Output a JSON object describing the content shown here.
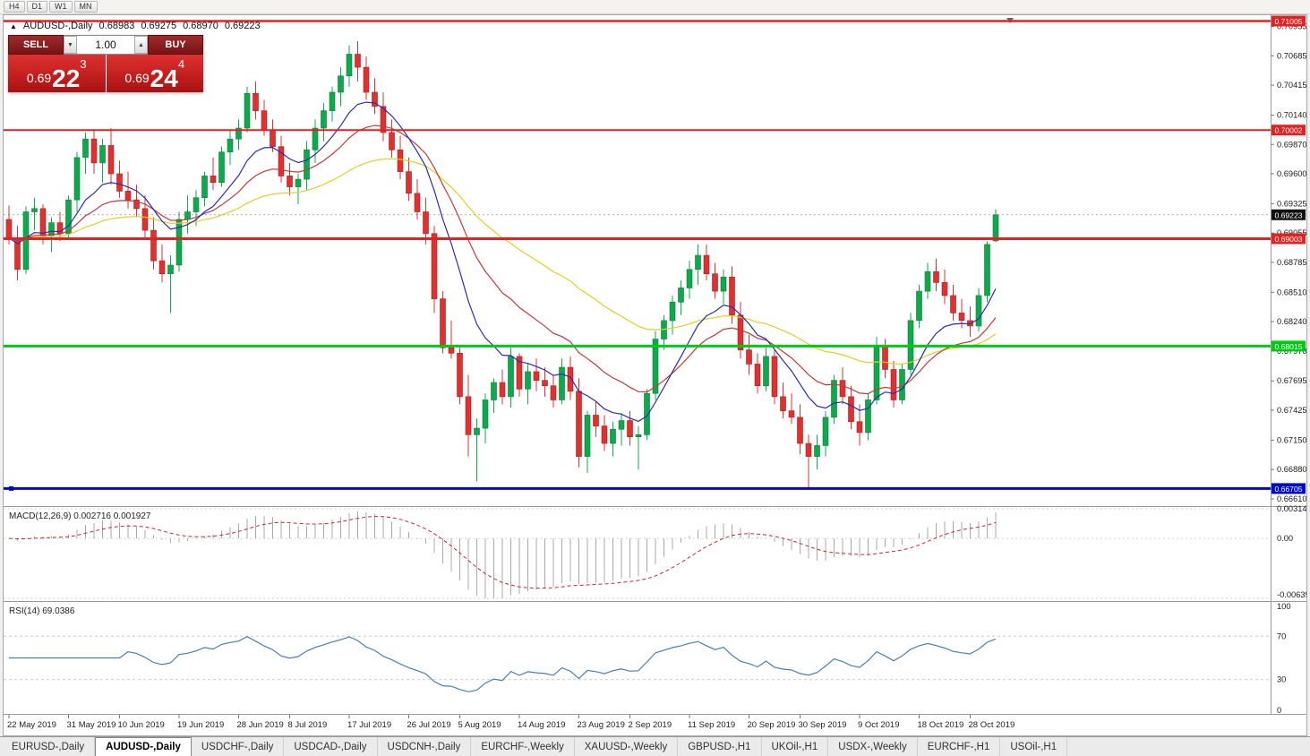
{
  "toolbar": {
    "timeframes": [
      "H4",
      "D1",
      "W1",
      "MN"
    ]
  },
  "chart": {
    "symbol_info": {
      "collapse_icon": "▲",
      "title": "AUDUSD-,Daily",
      "open": "0.68983",
      "high": "0.69275",
      "low": "0.68970",
      "close": "0.69223"
    },
    "trade_panel": {
      "sell_label": "SELL",
      "buy_label": "BUY",
      "volume": "1.00",
      "volume_down_icon": "▼",
      "volume_up_icon": "▲",
      "sell_price": {
        "prefix": "0.69",
        "big": "22",
        "sup": "3"
      },
      "buy_price": {
        "prefix": "0.69",
        "big": "24",
        "sup": "4"
      }
    },
    "price_axis": [
      "0.70955",
      "0.70685",
      "0.70415",
      "0.70140",
      "0.69870",
      "0.69600",
      "0.69325",
      "0.69055",
      "0.68785",
      "0.68510",
      "0.68240",
      "0.67970",
      "0.67695",
      "0.67425",
      "0.67150",
      "0.66880",
      "0.66610"
    ],
    "levels": [
      {
        "label": "0.71005",
        "price": 0.71005,
        "color": "#e12222",
        "width": 2.5
      },
      {
        "label": "0.70002",
        "price": 0.70002,
        "color": "#e12222",
        "width": 2
      },
      {
        "label": "0.69003",
        "price": 0.69003,
        "color": "#e12222",
        "width": 3
      },
      {
        "label": "0.68015",
        "price": 0.68015,
        "color": "#00ca12",
        "width": 3
      },
      {
        "label": "0.66705",
        "price": 0.66705,
        "color": "#0008d0",
        "width": 3
      }
    ],
    "bid": {
      "label": "0.69223",
      "price": 0.69223,
      "badge_color": "#101010"
    },
    "date_ticks": [
      {
        "label": "22 May 2019",
        "i": 0
      },
      {
        "label": "31 May 2019",
        "i": 7
      },
      {
        "label": "10 Jun 2019",
        "i": 13
      },
      {
        "label": "19 Jun 2019",
        "i": 20
      },
      {
        "label": "28 Jun 2019",
        "i": 27
      },
      {
        "label": "8 Jul 2019",
        "i": 33
      },
      {
        "label": "17 Jul 2019",
        "i": 40
      },
      {
        "label": "26 Jul 2019",
        "i": 47
      },
      {
        "label": "5 Aug 2019",
        "i": 53
      },
      {
        "label": "14 Aug 2019",
        "i": 60
      },
      {
        "label": "23 Aug 2019",
        "i": 67
      },
      {
        "label": "2 Sep 2019",
        "i": 73
      },
      {
        "label": "11 Sep 2019",
        "i": 80
      },
      {
        "label": "20 Sep 2019",
        "i": 87
      },
      {
        "label": "30 Sep 2019",
        "i": 93
      },
      {
        "label": "9 Oct 2019",
        "i": 100
      },
      {
        "label": "18 Oct 2019",
        "i": 107
      },
      {
        "label": "28 Oct 2019",
        "i": 113
      }
    ],
    "macd_label": "MACD(12,26,9)",
    "macd_value_main": "0.002716",
    "macd_value_signal": "0.001927",
    "macd_axis": [
      {
        "label": "0.003148",
        "v": 0.003148
      },
      {
        "label": "0.00",
        "v": 0
      },
      {
        "label": "-0.006353",
        "v": -0.006353
      }
    ],
    "rsi_label": "RSI(14) 69.0386",
    "rsi_axis": [
      {
        "label": "100",
        "v": 100
      },
      {
        "label": "70",
        "v": 70
      },
      {
        "label": "30",
        "v": 30
      },
      {
        "label": "0",
        "v": 0
      }
    ]
  },
  "tabs": [
    {
      "label": "EURUSD-,Daily",
      "active": false
    },
    {
      "label": "AUDUSD-,Daily",
      "active": true
    },
    {
      "label": "USDCHF-,Daily",
      "active": false
    },
    {
      "label": "USDCAD-,Daily",
      "active": false
    },
    {
      "label": "USDCNH-,Daily",
      "active": false
    },
    {
      "label": "EURCHF-,Weekly",
      "active": false
    },
    {
      "label": "XAUUSD-,Weekly",
      "active": false
    },
    {
      "label": "GBPUSD-,H1",
      "active": false
    },
    {
      "label": "UKOil-,H1",
      "active": false
    },
    {
      "label": "USDX-,Weekly",
      "active": false
    },
    {
      "label": "EURCHF-,H1",
      "active": false
    },
    {
      "label": "USOil-,H1",
      "active": false
    }
  ],
  "chart_data": {
    "type": "candlestick",
    "symbol": "AUDUSD",
    "timeframe": "Daily",
    "x_range": [
      "22 May 2019",
      "31 Oct 2019"
    ],
    "y_range": [
      0.6656,
      0.71042
    ],
    "last_ohlc": [
      0.68983,
      0.69275,
      0.6897,
      0.69223
    ],
    "horizontal_levels": [
      0.71005,
      0.70002,
      0.69003,
      0.68015,
      0.66705
    ],
    "candles": [
      [
        0.6918,
        0.6931,
        0.6895,
        0.6901
      ],
      [
        0.6901,
        0.6912,
        0.6862,
        0.6872
      ],
      [
        0.6872,
        0.693,
        0.6868,
        0.6925
      ],
      [
        0.6925,
        0.6938,
        0.6908,
        0.6928
      ],
      [
        0.6928,
        0.6932,
        0.6895,
        0.6903
      ],
      [
        0.6903,
        0.692,
        0.6888,
        0.6915
      ],
      [
        0.6915,
        0.6925,
        0.6898,
        0.6905
      ],
      [
        0.6905,
        0.694,
        0.69,
        0.6936
      ],
      [
        0.6936,
        0.698,
        0.6925,
        0.6975
      ],
      [
        0.6975,
        0.6998,
        0.696,
        0.6992
      ],
      [
        0.6992,
        0.7,
        0.696,
        0.697
      ],
      [
        0.697,
        0.6992,
        0.6952,
        0.6986
      ],
      [
        0.6986,
        0.7002,
        0.695,
        0.696
      ],
      [
        0.696,
        0.6972,
        0.6938,
        0.6944
      ],
      [
        0.6944,
        0.6962,
        0.6928,
        0.6936
      ],
      [
        0.6936,
        0.695,
        0.692,
        0.6928
      ],
      [
        0.6928,
        0.694,
        0.69,
        0.6908
      ],
      [
        0.6908,
        0.692,
        0.6872,
        0.688
      ],
      [
        0.688,
        0.6895,
        0.686,
        0.6868
      ],
      [
        0.6868,
        0.6885,
        0.6832,
        0.6876
      ],
      [
        0.6876,
        0.6925,
        0.687,
        0.6918
      ],
      [
        0.6918,
        0.694,
        0.6905,
        0.6925
      ],
      [
        0.6925,
        0.6945,
        0.6912,
        0.6938
      ],
      [
        0.6938,
        0.6962,
        0.693,
        0.6958
      ],
      [
        0.6958,
        0.6975,
        0.6945,
        0.6952
      ],
      [
        0.6952,
        0.6985,
        0.6948,
        0.698
      ],
      [
        0.698,
        0.7,
        0.6968,
        0.6992
      ],
      [
        0.6992,
        0.701,
        0.6982,
        0.7002
      ],
      [
        0.7002,
        0.704,
        0.6998,
        0.7034
      ],
      [
        0.7034,
        0.7045,
        0.701,
        0.7018
      ],
      [
        0.7018,
        0.7028,
        0.6995,
        0.7
      ],
      [
        0.7,
        0.701,
        0.698,
        0.6985
      ],
      [
        0.6985,
        0.6995,
        0.6952,
        0.6958
      ],
      [
        0.6958,
        0.697,
        0.694,
        0.6948
      ],
      [
        0.6948,
        0.696,
        0.6932,
        0.6955
      ],
      [
        0.6955,
        0.699,
        0.6945,
        0.6982
      ],
      [
        0.6982,
        0.701,
        0.697,
        0.7002
      ],
      [
        0.7002,
        0.7025,
        0.699,
        0.7018
      ],
      [
        0.7018,
        0.704,
        0.7008,
        0.7035
      ],
      [
        0.7035,
        0.7058,
        0.7022,
        0.705
      ],
      [
        0.705,
        0.7078,
        0.704,
        0.707
      ],
      [
        0.707,
        0.7082,
        0.7045,
        0.7058
      ],
      [
        0.7058,
        0.7068,
        0.7028,
        0.7035
      ],
      [
        0.7035,
        0.7048,
        0.7015,
        0.7022
      ],
      [
        0.7022,
        0.7035,
        0.699,
        0.6998
      ],
      [
        0.6998,
        0.701,
        0.6975,
        0.6982
      ],
      [
        0.6982,
        0.6995,
        0.6955,
        0.6962
      ],
      [
        0.6962,
        0.6975,
        0.6935,
        0.6942
      ],
      [
        0.6942,
        0.6955,
        0.6918,
        0.6925
      ],
      [
        0.6925,
        0.6938,
        0.6895,
        0.6905
      ],
      [
        0.6905,
        0.6912,
        0.6832,
        0.6845
      ],
      [
        0.6845,
        0.6852,
        0.6795,
        0.68
      ],
      [
        0.68,
        0.6825,
        0.679,
        0.6795
      ],
      [
        0.6795,
        0.68,
        0.6748,
        0.6755
      ],
      [
        0.6755,
        0.6775,
        0.67,
        0.672
      ],
      [
        0.672,
        0.6735,
        0.6677,
        0.6726
      ],
      [
        0.6726,
        0.6758,
        0.6712,
        0.6752
      ],
      [
        0.6752,
        0.6772,
        0.674,
        0.6768
      ],
      [
        0.6768,
        0.678,
        0.6748,
        0.6755
      ],
      [
        0.6755,
        0.68,
        0.6745,
        0.6792
      ],
      [
        0.6792,
        0.6795,
        0.6755,
        0.6762
      ],
      [
        0.6762,
        0.6785,
        0.6748,
        0.6778
      ],
      [
        0.6778,
        0.679,
        0.676,
        0.677
      ],
      [
        0.677,
        0.6782,
        0.6755,
        0.6765
      ],
      [
        0.6765,
        0.6775,
        0.6745,
        0.6752
      ],
      [
        0.6752,
        0.679,
        0.6748,
        0.6782
      ],
      [
        0.6782,
        0.6792,
        0.6752,
        0.676
      ],
      [
        0.676,
        0.6772,
        0.669,
        0.67
      ],
      [
        0.67,
        0.6742,
        0.6685,
        0.6738
      ],
      [
        0.6738,
        0.675,
        0.6718,
        0.6728
      ],
      [
        0.6728,
        0.6738,
        0.6705,
        0.6712
      ],
      [
        0.6712,
        0.6732,
        0.67,
        0.6725
      ],
      [
        0.6725,
        0.674,
        0.671,
        0.6733
      ],
      [
        0.6733,
        0.6742,
        0.671,
        0.6718
      ],
      [
        0.6718,
        0.6728,
        0.6688,
        0.672
      ],
      [
        0.672,
        0.6762,
        0.6715,
        0.6758
      ],
      [
        0.6758,
        0.6815,
        0.6752,
        0.6808
      ],
      [
        0.6808,
        0.683,
        0.6798,
        0.6825
      ],
      [
        0.6825,
        0.6848,
        0.6812,
        0.6842
      ],
      [
        0.6842,
        0.6862,
        0.683,
        0.6855
      ],
      [
        0.6855,
        0.688,
        0.6845,
        0.6872
      ],
      [
        0.6872,
        0.6895,
        0.6858,
        0.6885
      ],
      [
        0.6885,
        0.6895,
        0.6862,
        0.6868
      ],
      [
        0.6868,
        0.6878,
        0.6845,
        0.6852
      ],
      [
        0.6852,
        0.6872,
        0.684,
        0.6865
      ],
      [
        0.6865,
        0.6875,
        0.6822,
        0.683
      ],
      [
        0.683,
        0.6842,
        0.679,
        0.6798
      ],
      [
        0.6798,
        0.6812,
        0.6775,
        0.6785
      ],
      [
        0.6785,
        0.6795,
        0.6758,
        0.6765
      ],
      [
        0.6765,
        0.68,
        0.676,
        0.6792
      ],
      [
        0.6792,
        0.6798,
        0.6748,
        0.6755
      ],
      [
        0.6755,
        0.6768,
        0.6735,
        0.6742
      ],
      [
        0.6742,
        0.6758,
        0.673,
        0.6736
      ],
      [
        0.6736,
        0.6748,
        0.6702,
        0.6712
      ],
      [
        0.6712,
        0.672,
        0.66705,
        0.67
      ],
      [
        0.67,
        0.672,
        0.6688,
        0.671
      ],
      [
        0.671,
        0.6742,
        0.67,
        0.6736
      ],
      [
        0.6736,
        0.6775,
        0.673,
        0.677
      ],
      [
        0.677,
        0.6782,
        0.6748,
        0.6755
      ],
      [
        0.6755,
        0.6765,
        0.6725,
        0.6732
      ],
      [
        0.6732,
        0.6748,
        0.671,
        0.6722
      ],
      [
        0.6722,
        0.6758,
        0.6715,
        0.6752
      ],
      [
        0.6752,
        0.681,
        0.6748,
        0.6802
      ],
      [
        0.6802,
        0.6808,
        0.6772,
        0.678
      ],
      [
        0.678,
        0.6788,
        0.6745,
        0.6752
      ],
      [
        0.6752,
        0.6785,
        0.6748,
        0.678
      ],
      [
        0.678,
        0.6832,
        0.6775,
        0.6825
      ],
      [
        0.6825,
        0.6858,
        0.6818,
        0.6852
      ],
      [
        0.6852,
        0.6878,
        0.6845,
        0.687
      ],
      [
        0.687,
        0.6882,
        0.6852,
        0.686
      ],
      [
        0.686,
        0.6872,
        0.684,
        0.6848
      ],
      [
        0.6848,
        0.6858,
        0.6825,
        0.6832
      ],
      [
        0.6832,
        0.6845,
        0.6818,
        0.6825
      ],
      [
        0.6825,
        0.6838,
        0.681,
        0.682
      ],
      [
        0.682,
        0.6855,
        0.6815,
        0.6848
      ],
      [
        0.6848,
        0.6898,
        0.6842,
        0.6895
      ],
      [
        0.68983,
        0.69275,
        0.6897,
        0.69223
      ]
    ]
  }
}
